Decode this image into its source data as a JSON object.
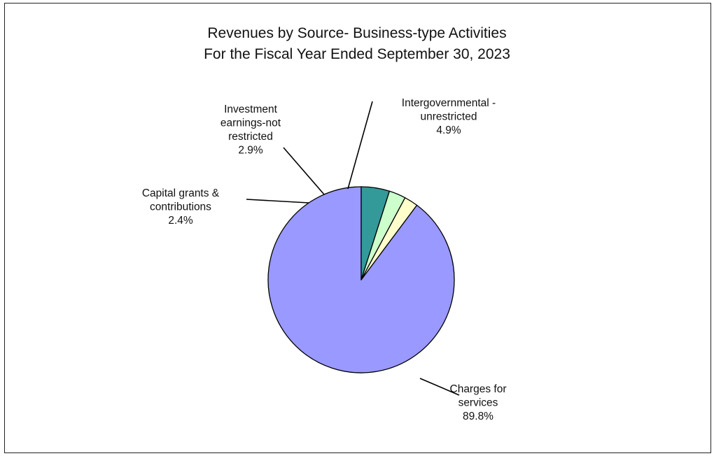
{
  "chart_data": {
    "type": "pie",
    "title_lines": [
      "Revenues  by Source- Business-type Activities",
      "For the Fiscal Year Ended September 30, 2023"
    ],
    "slices": [
      {
        "label_lines": [
          "Charges for",
          "services"
        ],
        "value": 89.8,
        "value_label": "89.8%",
        "color": "#9999ff"
      },
      {
        "label_lines": [
          "Capital grants &",
          "contributions"
        ],
        "value": 2.4,
        "value_label": "2.4%",
        "color": "#ffffcc"
      },
      {
        "label_lines": [
          "Investment",
          "earnings-not",
          "restricted"
        ],
        "value": 2.9,
        "value_label": "2.9%",
        "color": "#ccffcc"
      },
      {
        "label_lines": [
          "Intergovernmental  -",
          "unrestricted"
        ],
        "value": 4.9,
        "value_label": "4.9%",
        "color": "#339999"
      }
    ],
    "start_angle": "12 o'clock",
    "direction": "counter-clockwise",
    "legend": "none",
    "leader_lines": true
  }
}
